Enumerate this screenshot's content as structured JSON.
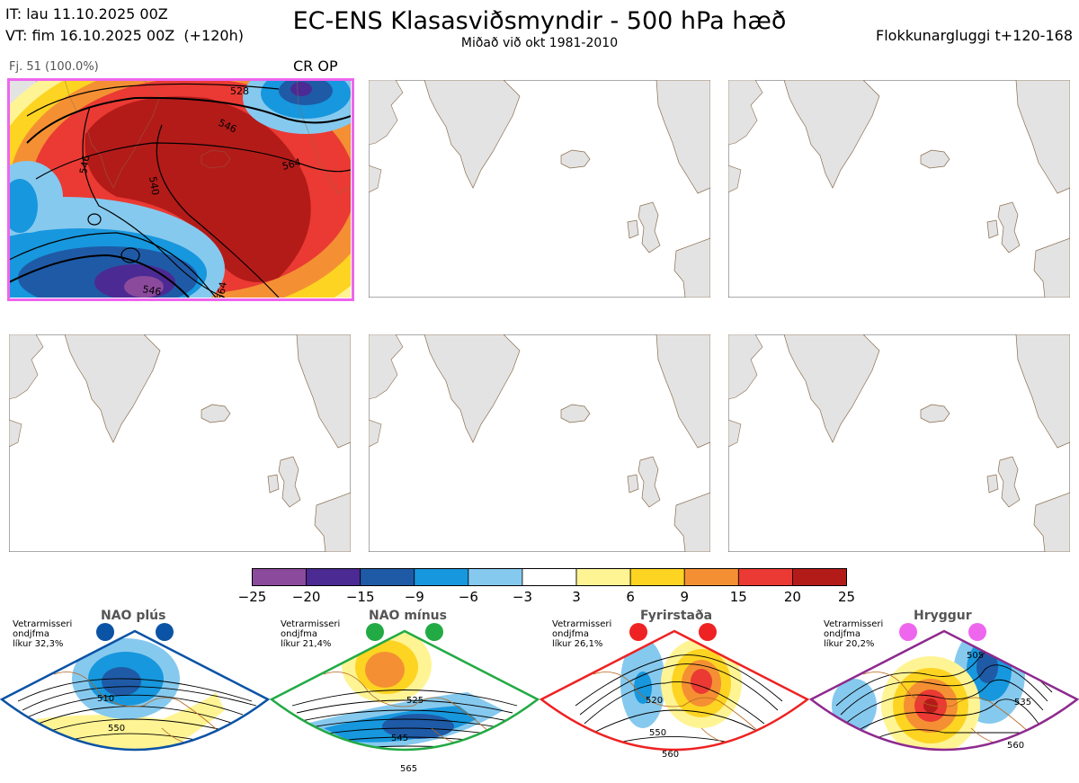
{
  "header": {
    "it_line": "IT: lau 11.10.2025 00Z",
    "vt_line": "VT: fim 16.10.2025 00Z  (+120h)",
    "title": "EC-ENS Klasasviðsmyndir - 500 hPa hæð",
    "subtitle": "Miðað við okt 1981-2010",
    "window": "Flokkunargluggi t+120-168"
  },
  "cluster": {
    "label": "Fj. 51 (100.0%)",
    "type": "CR OP",
    "contour_labels": [
      "528",
      "546",
      "546",
      "564",
      "540",
      "546",
      "564"
    ],
    "frame_color": "#ee66ee"
  },
  "colorbar": {
    "ticks": [
      "−25",
      "−20",
      "−15",
      "−9",
      "−6",
      "−3",
      "3",
      "6",
      "9",
      "15",
      "20",
      "25"
    ],
    "colors": [
      "#8b4a9c",
      "#4b2a93",
      "#1f5aa7",
      "#1797dd",
      "#86c9ee",
      "#ffffff",
      "#fff494",
      "#fdd422",
      "#f49033",
      "#ea3a33",
      "#b31b19"
    ]
  },
  "regimes": [
    {
      "name": "NAO plús",
      "stat": "Vetrarmisseri\nondjfma\nlíkur 32,3%",
      "color": "#0b53a5",
      "labels": [
        "510",
        "550"
      ]
    },
    {
      "name": "NAO mínus",
      "stat": "Vetrarmisseri\nondjfma\nlíkur 21,4%",
      "color": "#22aa44",
      "labels": [
        "525",
        "545",
        "565"
      ]
    },
    {
      "name": "Fyrirstaða",
      "stat": "Vetrarmisseri\nondjfma\nlíkur 26,1%",
      "color": "#ee2222",
      "labels": [
        "520",
        "550",
        "560"
      ]
    },
    {
      "name": "Hryggur",
      "stat": "Vetrarmisseri\nondjfma\nlíkur 20,2%",
      "color": "#ee66ee",
      "labels": [
        "505",
        "535",
        "560"
      ]
    }
  ]
}
